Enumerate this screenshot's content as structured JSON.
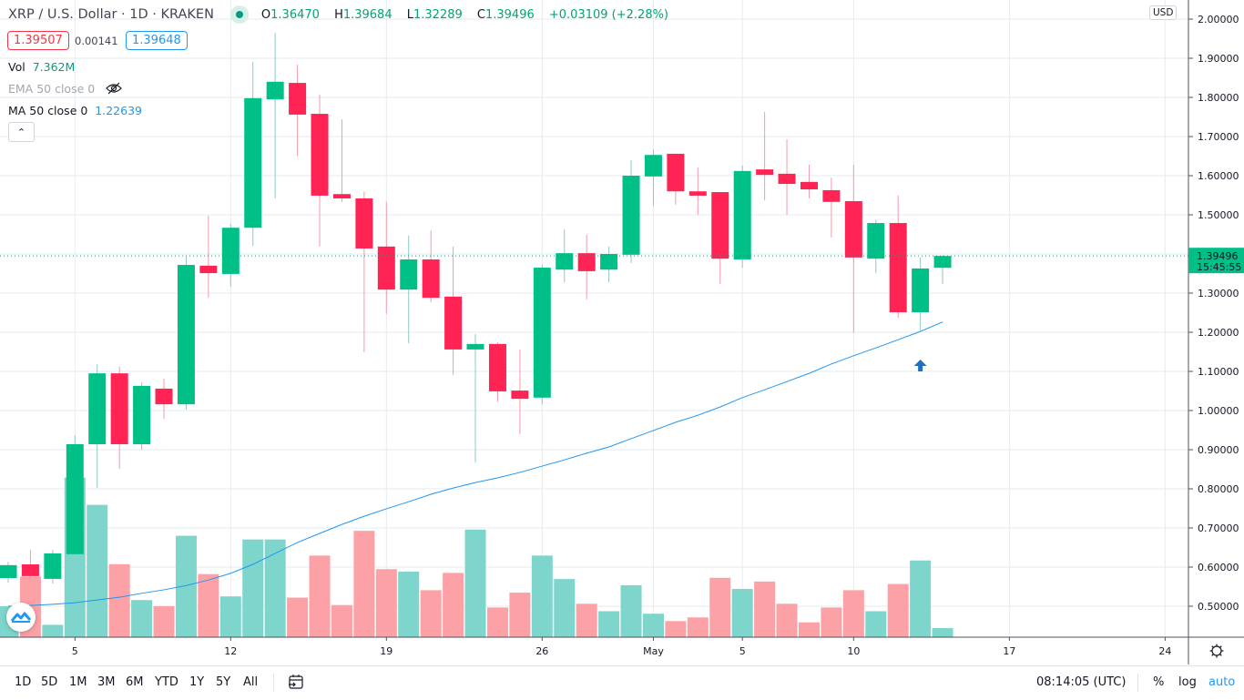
{
  "header": {
    "symbol_title": "XRP / U.S. Dollar · 1D · KRAKEN",
    "ohlc": {
      "o_label": "O",
      "o": "1.36470",
      "h_label": "H",
      "h": "1.39684",
      "l_label": "L",
      "l": "1.32289",
      "c_label": "C",
      "c": "1.39496",
      "change": "+0.03109 (+2.28%)"
    },
    "bid": "1.39507",
    "spread": "0.00141",
    "ask": "1.39648"
  },
  "indicators": {
    "vol": {
      "label": "Vol",
      "value": "7.362M"
    },
    "ema": {
      "label": "EMA 50 close 0",
      "hidden": true
    },
    "ma": {
      "label": "MA 50 close 0",
      "value": "1.22639"
    }
  },
  "price_axis": {
    "currency": "USD",
    "ticks": [
      "2.00000",
      "1.90000",
      "1.80000",
      "1.70000",
      "1.60000",
      "1.50000",
      "1.30000",
      "1.20000",
      "1.10000",
      "1.00000",
      "0.90000",
      "0.80000",
      "0.70000",
      "0.60000",
      "0.50000"
    ],
    "last_price": "1.39496",
    "countdown": "15:45:55"
  },
  "time_axis": {
    "ticks": [
      "5",
      "12",
      "19",
      "26",
      "May",
      "5",
      "10",
      "17",
      "24"
    ]
  },
  "bottom_toolbar": {
    "ranges": [
      "1D",
      "5D",
      "1M",
      "3M",
      "6M",
      "YTD",
      "1Y",
      "5Y",
      "All"
    ],
    "clock": "08:14:05 (UTC)",
    "percent": "%",
    "log": "log",
    "auto": "auto"
  },
  "colors": {
    "up": "#00c087",
    "down": "#ff2453",
    "vol_up": "#7dd5cb",
    "vol_down": "#fca1a6",
    "ma": "#2196f3",
    "marker": "#1e6fc5"
  },
  "chart_data": {
    "type": "candlestick",
    "symbol": "XRP / U.S. Dollar",
    "interval": "1D",
    "exchange": "KRAKEN",
    "ylim": [
      0.4,
      2.05
    ],
    "grid": true,
    "candles": [
      {
        "date": "Apr 2",
        "o": 0.572,
        "h": 0.614,
        "l": 0.56,
        "c": 0.605,
        "vol": 25
      },
      {
        "date": "Apr 3",
        "o": 0.607,
        "h": 0.644,
        "l": 0.567,
        "c": 0.577,
        "vol": 49
      },
      {
        "date": "Apr 4",
        "o": 0.57,
        "h": 0.644,
        "l": 0.558,
        "c": 0.635,
        "vol": 10
      },
      {
        "date": "Apr 5",
        "o": 0.633,
        "h": 0.937,
        "l": 0.626,
        "c": 0.914,
        "vol": 129
      },
      {
        "date": "Apr 6",
        "o": 0.914,
        "h": 1.119,
        "l": 0.802,
        "c": 1.095,
        "vol": 107
      },
      {
        "date": "Apr 7",
        "o": 1.095,
        "h": 1.112,
        "l": 0.851,
        "c": 0.914,
        "vol": 59
      },
      {
        "date": "Apr 8",
        "o": 0.914,
        "h": 1.072,
        "l": 0.9,
        "c": 1.063,
        "vol": 30
      },
      {
        "date": "Apr 9",
        "o": 1.056,
        "h": 1.081,
        "l": 0.979,
        "c": 1.016,
        "vol": 25
      },
      {
        "date": "Apr 10",
        "o": 1.016,
        "h": 1.393,
        "l": 1.002,
        "c": 1.372,
        "vol": 82
      },
      {
        "date": "Apr 11",
        "o": 1.37,
        "h": 1.498,
        "l": 1.288,
        "c": 1.351,
        "vol": 51
      },
      {
        "date": "Apr 12",
        "o": 1.349,
        "h": 1.477,
        "l": 1.316,
        "c": 1.467,
        "vol": 33
      },
      {
        "date": "Apr 13",
        "o": 1.467,
        "h": 1.891,
        "l": 1.421,
        "c": 1.798,
        "vol": 79
      },
      {
        "date": "Apr 14",
        "o": 1.795,
        "h": 1.965,
        "l": 1.542,
        "c": 1.84,
        "vol": 79
      },
      {
        "date": "Apr 15",
        "o": 1.837,
        "h": 1.884,
        "l": 1.651,
        "c": 1.756,
        "vol": 32
      },
      {
        "date": "Apr 16",
        "o": 1.758,
        "h": 1.807,
        "l": 1.419,
        "c": 1.549,
        "vol": 66
      },
      {
        "date": "Apr 17",
        "o": 1.553,
        "h": 1.744,
        "l": 1.533,
        "c": 1.542,
        "vol": 26
      },
      {
        "date": "Apr 18",
        "o": 1.542,
        "h": 1.56,
        "l": 1.149,
        "c": 1.414,
        "vol": 86
      },
      {
        "date": "Apr 19",
        "o": 1.419,
        "h": 1.533,
        "l": 1.247,
        "c": 1.309,
        "vol": 55
      },
      {
        "date": "Apr 20",
        "o": 1.309,
        "h": 1.447,
        "l": 1.172,
        "c": 1.386,
        "vol": 53
      },
      {
        "date": "Apr 21",
        "o": 1.386,
        "h": 1.46,
        "l": 1.277,
        "c": 1.288,
        "vol": 38
      },
      {
        "date": "Apr 22",
        "o": 1.291,
        "h": 1.419,
        "l": 1.091,
        "c": 1.156,
        "vol": 52
      },
      {
        "date": "Apr 23",
        "o": 1.156,
        "h": 1.195,
        "l": 0.867,
        "c": 1.17,
        "vol": 87
      },
      {
        "date": "Apr 24",
        "o": 1.17,
        "h": 1.174,
        "l": 1.023,
        "c": 1.049,
        "vol": 24
      },
      {
        "date": "Apr 25",
        "o": 1.051,
        "h": 1.156,
        "l": 0.94,
        "c": 1.03,
        "vol": 36
      },
      {
        "date": "Apr 26",
        "o": 1.033,
        "h": 1.372,
        "l": 1.016,
        "c": 1.365,
        "vol": 66
      },
      {
        "date": "Apr 27",
        "o": 1.36,
        "h": 1.463,
        "l": 1.328,
        "c": 1.402,
        "vol": 47
      },
      {
        "date": "Apr 28",
        "o": 1.402,
        "h": 1.449,
        "l": 1.284,
        "c": 1.356,
        "vol": 27
      },
      {
        "date": "Apr 29",
        "o": 1.36,
        "h": 1.419,
        "l": 1.328,
        "c": 1.4,
        "vol": 21
      },
      {
        "date": "Apr 30",
        "o": 1.398,
        "h": 1.64,
        "l": 1.377,
        "c": 1.6,
        "vol": 42
      },
      {
        "date": "May 1",
        "o": 1.598,
        "h": 1.667,
        "l": 1.523,
        "c": 1.653,
        "vol": 19
      },
      {
        "date": "May 2",
        "o": 1.656,
        "h": 1.656,
        "l": 1.526,
        "c": 1.56,
        "vol": 13
      },
      {
        "date": "May 3",
        "o": 1.56,
        "h": 1.621,
        "l": 1.5,
        "c": 1.549,
        "vol": 16
      },
      {
        "date": "May 4",
        "o": 1.558,
        "h": 1.558,
        "l": 1.323,
        "c": 1.388,
        "vol": 48
      },
      {
        "date": "May 5",
        "o": 1.386,
        "h": 1.626,
        "l": 1.365,
        "c": 1.612,
        "vol": 39
      },
      {
        "date": "May 6",
        "o": 1.616,
        "h": 1.763,
        "l": 1.537,
        "c": 1.602,
        "vol": 45
      },
      {
        "date": "May 7",
        "o": 1.605,
        "h": 1.693,
        "l": 1.5,
        "c": 1.579,
        "vol": 27
      },
      {
        "date": "May 8",
        "o": 1.584,
        "h": 1.628,
        "l": 1.542,
        "c": 1.565,
        "vol": 12
      },
      {
        "date": "May 9",
        "o": 1.563,
        "h": 1.595,
        "l": 1.442,
        "c": 1.533,
        "vol": 24
      },
      {
        "date": "May 10",
        "o": 1.535,
        "h": 1.628,
        "l": 1.198,
        "c": 1.391,
        "vol": 38
      },
      {
        "date": "May 11",
        "o": 1.388,
        "h": 1.488,
        "l": 1.351,
        "c": 1.479,
        "vol": 21
      },
      {
        "date": "May 12",
        "o": 1.479,
        "h": 1.549,
        "l": 1.237,
        "c": 1.251,
        "vol": 43
      },
      {
        "date": "May 13",
        "o": 1.251,
        "h": 1.391,
        "l": 1.2,
        "c": 1.363,
        "vol": 62
      },
      {
        "date": "May 14",
        "o": 1.3647,
        "h": 1.39684,
        "l": 1.32289,
        "c": 1.39496,
        "vol": 7.362
      }
    ],
    "volume_unit": "M",
    "ma50": [
      0.5,
      0.502,
      0.505,
      0.509,
      0.516,
      0.523,
      0.533,
      0.542,
      0.553,
      0.567,
      0.584,
      0.607,
      0.635,
      0.663,
      0.686,
      0.709,
      0.73,
      0.749,
      0.767,
      0.786,
      0.802,
      0.816,
      0.828,
      0.842,
      0.858,
      0.874,
      0.891,
      0.907,
      0.928,
      0.949,
      0.97,
      0.988,
      1.009,
      1.033,
      1.053,
      1.074,
      1.095,
      1.119,
      1.14,
      1.16,
      1.181,
      1.202,
      1.22639
    ],
    "last_price_line": 1.39496,
    "marker": {
      "date": "May 13",
      "type": "arrow-up"
    }
  }
}
